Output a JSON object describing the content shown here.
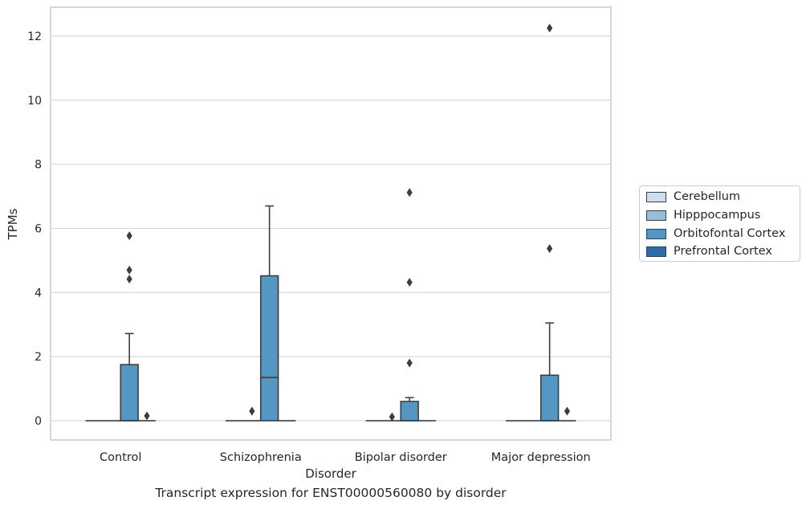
{
  "chart_data": {
    "type": "box",
    "title": "",
    "caption": "Transcript expression for ENST00000560080 by disorder",
    "xlabel": "Disorder",
    "ylabel": "TPMs",
    "ylim": [
      -0.6,
      12.9
    ],
    "yticks": [
      0,
      2,
      4,
      6,
      8,
      10,
      12
    ],
    "ytick_labels": [
      "0",
      "2",
      "4",
      "6",
      "8",
      "10",
      "12"
    ],
    "grid": true,
    "legend_placement": "right",
    "categories": [
      "Control",
      "Schizophrenia",
      "Bipolar disorder",
      "Major depression"
    ],
    "series": [
      {
        "name": "Cerebellum",
        "color": "#d0dfef",
        "boxes": [
          {
            "q1": 0,
            "median": 0,
            "q3": 0,
            "whislo": 0,
            "whishi": 0,
            "fliers": []
          },
          {
            "q1": 0,
            "median": 0,
            "q3": 0,
            "whislo": 0,
            "whishi": 0,
            "fliers": []
          },
          {
            "q1": 0,
            "median": 0,
            "q3": 0,
            "whislo": 0,
            "whishi": 0,
            "fliers": []
          },
          {
            "q1": 0,
            "median": 0,
            "q3": 0,
            "whislo": 0,
            "whishi": 0,
            "fliers": []
          }
        ]
      },
      {
        "name": "Hipppocampus",
        "color": "#93bfdb",
        "boxes": [
          {
            "q1": 0,
            "median": 0,
            "q3": 0,
            "whislo": 0,
            "whishi": 0,
            "fliers": []
          },
          {
            "q1": 0,
            "median": 0,
            "q3": 0,
            "whislo": 0,
            "whishi": 0,
            "fliers": [
              0.3
            ]
          },
          {
            "q1": 0,
            "median": 0,
            "q3": 0,
            "whislo": 0,
            "whishi": 0,
            "fliers": [
              0.12
            ]
          },
          {
            "q1": 0,
            "median": 0,
            "q3": 0,
            "whislo": 0,
            "whishi": 0,
            "fliers": []
          }
        ]
      },
      {
        "name": "Orbitofontal Cortex",
        "color": "#5497c5",
        "boxes": [
          {
            "q1": 0,
            "median": 0,
            "q3": 1.75,
            "whislo": 0,
            "whishi": 2.72,
            "fliers": [
              4.42,
              4.7,
              5.77
            ]
          },
          {
            "q1": 0,
            "median": 1.35,
            "q3": 4.52,
            "whislo": 0,
            "whishi": 6.7,
            "fliers": []
          },
          {
            "q1": 0,
            "median": 0,
            "q3": 0.6,
            "whislo": 0,
            "whishi": 0.72,
            "fliers": [
              1.8,
              4.32,
              7.12
            ]
          },
          {
            "q1": 0,
            "median": 0,
            "q3": 1.42,
            "whislo": 0,
            "whishi": 3.05,
            "fliers": [
              5.37,
              12.25
            ]
          }
        ]
      },
      {
        "name": "Prefrontal Cortex",
        "color": "#2f6da8",
        "boxes": [
          {
            "q1": 0,
            "median": 0,
            "q3": 0,
            "whislo": 0,
            "whishi": 0,
            "fliers": [
              0.15
            ]
          },
          {
            "q1": 0,
            "median": 0,
            "q3": 0,
            "whislo": 0,
            "whishi": 0,
            "fliers": []
          },
          {
            "q1": 0,
            "median": 0,
            "q3": 0,
            "whislo": 0,
            "whishi": 0,
            "fliers": []
          },
          {
            "q1": 0,
            "median": 0,
            "q3": 0,
            "whislo": 0,
            "whishi": 0,
            "fliers": [
              0.3
            ]
          }
        ]
      }
    ]
  }
}
